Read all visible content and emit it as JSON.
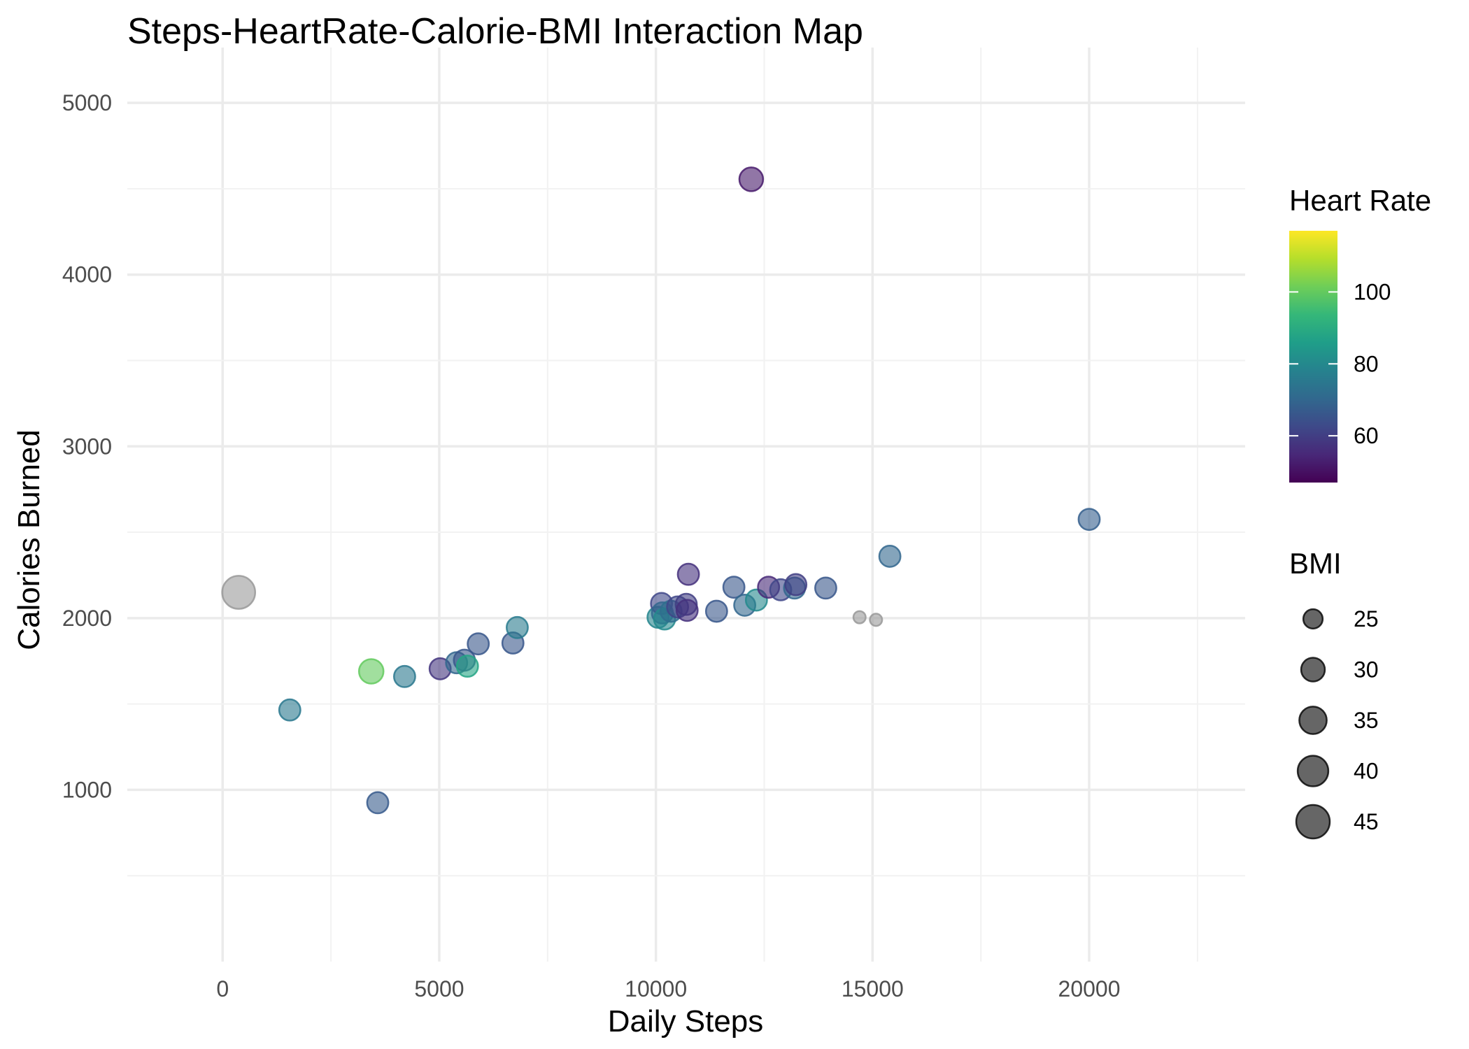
{
  "chart_data": {
    "type": "scatter",
    "title": "Steps-HeartRate-Calorie-BMI Interaction Map",
    "xlabel": "Daily Steps",
    "ylabel": "Calories Burned",
    "xlim": [
      -2200,
      23600
    ],
    "ylim": [
      0,
      5200
    ],
    "x_ticks": [
      0,
      5000,
      10000,
      15000,
      20000
    ],
    "x_tick_labels": [
      "0",
      "5000",
      "10000",
      "15000",
      "20000"
    ],
    "y_ticks": [
      1000,
      2000,
      3000,
      4000,
      5000
    ],
    "y_tick_labels": [
      "1000",
      "2000",
      "3000",
      "4000",
      "5000"
    ],
    "grid": true,
    "color_legend": {
      "title": "Heart Rate",
      "min": 47,
      "max": 117,
      "ticks": [
        60,
        80,
        100
      ],
      "tick_labels": [
        "60",
        "80",
        "100"
      ],
      "palette": [
        "#440154",
        "#482878",
        "#3e4989",
        "#31688e",
        "#26828e",
        "#1f9e89",
        "#35b779",
        "#6ece58",
        "#b5de2b",
        "#fde725"
      ],
      "na_color": "#999999"
    },
    "size_legend": {
      "title": "BMI",
      "values": [
        25,
        30,
        35,
        40,
        45
      ],
      "labels": [
        "25",
        "30",
        "35",
        "40",
        "45"
      ]
    },
    "series": [
      {
        "points": [
          {
            "x": 370,
            "y": 2150,
            "hr": null,
            "bmi": 44
          },
          {
            "x": 1550,
            "y": 1465,
            "hr": 75,
            "bmi": 27
          },
          {
            "x": 3430,
            "y": 1690,
            "hr": 100,
            "bmi": 31
          },
          {
            "x": 3580,
            "y": 925,
            "hr": 67,
            "bmi": 27
          },
          {
            "x": 4200,
            "y": 1660,
            "hr": 75,
            "bmi": 27
          },
          {
            "x": 5020,
            "y": 1705,
            "hr": 58,
            "bmi": 27
          },
          {
            "x": 5400,
            "y": 1740,
            "hr": 70,
            "bmi": 27
          },
          {
            "x": 5580,
            "y": 1755,
            "hr": 66,
            "bmi": 27
          },
          {
            "x": 5650,
            "y": 1720,
            "hr": 88,
            "bmi": 27
          },
          {
            "x": 5900,
            "y": 1850,
            "hr": 66,
            "bmi": 27
          },
          {
            "x": 6700,
            "y": 1855,
            "hr": 66,
            "bmi": 27
          },
          {
            "x": 6800,
            "y": 1945,
            "hr": 76,
            "bmi": 27
          },
          {
            "x": 10050,
            "y": 2005,
            "hr": 79,
            "bmi": 27
          },
          {
            "x": 10130,
            "y": 2085,
            "hr": 62,
            "bmi": 27
          },
          {
            "x": 10150,
            "y": 2030,
            "hr": 70,
            "bmi": 27
          },
          {
            "x": 10200,
            "y": 1995,
            "hr": 80,
            "bmi": 27
          },
          {
            "x": 10350,
            "y": 2040,
            "hr": 72,
            "bmi": 27
          },
          {
            "x": 10500,
            "y": 2065,
            "hr": 62,
            "bmi": 27
          },
          {
            "x": 10700,
            "y": 2080,
            "hr": 60,
            "bmi": 27
          },
          {
            "x": 10720,
            "y": 2045,
            "hr": 57,
            "bmi": 27
          },
          {
            "x": 10750,
            "y": 2255,
            "hr": 57,
            "bmi": 27
          },
          {
            "x": 11400,
            "y": 2040,
            "hr": 66,
            "bmi": 27
          },
          {
            "x": 11800,
            "y": 2180,
            "hr": 66,
            "bmi": 27
          },
          {
            "x": 12050,
            "y": 2075,
            "hr": 70,
            "bmi": 27
          },
          {
            "x": 12200,
            "y": 4555,
            "hr": 52,
            "bmi": 30
          },
          {
            "x": 12320,
            "y": 2105,
            "hr": 80,
            "bmi": 27
          },
          {
            "x": 12600,
            "y": 2180,
            "hr": 55,
            "bmi": 27
          },
          {
            "x": 12880,
            "y": 2165,
            "hr": 62,
            "bmi": 27
          },
          {
            "x": 13200,
            "y": 2175,
            "hr": 70,
            "bmi": 27
          },
          {
            "x": 13230,
            "y": 2195,
            "hr": 60,
            "bmi": 27
          },
          {
            "x": 13920,
            "y": 2175,
            "hr": 66,
            "bmi": 27
          },
          {
            "x": 14700,
            "y": 2005,
            "hr": null,
            "bmi": 19
          },
          {
            "x": 15080,
            "y": 1990,
            "hr": null,
            "bmi": 19
          },
          {
            "x": 15400,
            "y": 2360,
            "hr": 70,
            "bmi": 27
          },
          {
            "x": 20000,
            "y": 2575,
            "hr": 68,
            "bmi": 27
          }
        ]
      }
    ]
  }
}
